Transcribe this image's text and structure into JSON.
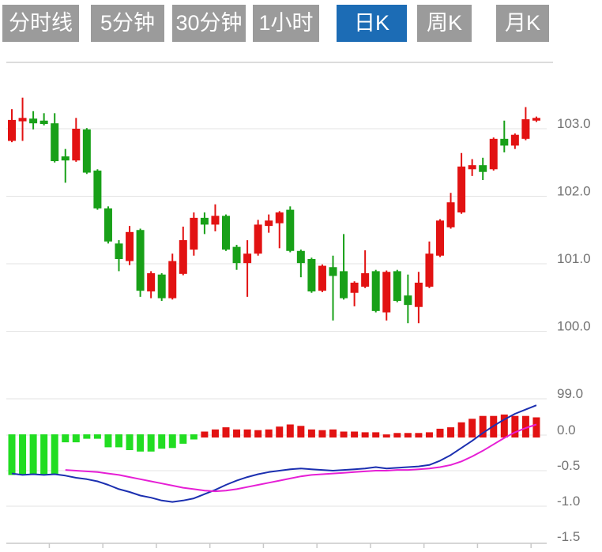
{
  "tabbar": {
    "active_index": 4,
    "active_color": "#1c6cb5",
    "inactive_color": "#9b9b9b",
    "tab_text_color": "#ffffff",
    "tabs": [
      {
        "label": "分时线"
      },
      {
        "label": "5分钟"
      },
      {
        "label": "30分钟"
      },
      {
        "label": "1小时"
      },
      {
        "label": "日K"
      },
      {
        "label": "周K"
      },
      {
        "label": "月K"
      }
    ]
  },
  "colors": {
    "candle_up": "#e21212",
    "candle_down": "#18a018",
    "macd_bar_up": "#e21212",
    "macd_bar_down": "#22dd22",
    "dif_line": "#1b2fb0",
    "dea_line": "#e61fd5",
    "gridline": "#e3e3e3",
    "axis_line": "#c9c9c9",
    "tick_label": "#737373"
  },
  "chart_data": {
    "type": "candlestick+macd",
    "grid": true,
    "legend": "none",
    "panels": [
      {
        "name": "price",
        "kind": "candlestick",
        "y_axis_side": "right",
        "y_ticks": [
          103.0,
          102.0,
          101.0,
          100.0,
          99.0
        ],
        "y_tick_labels": [
          "103.0",
          "102.0",
          "101.0",
          "100.0",
          "99.0"
        ],
        "ylim": [
          98.9,
          103.55
        ],
        "up_color_convention": "red-up / green-down (CN)",
        "ohlc": [
          [
            102.82,
            103.29,
            102.8,
            103.13
          ],
          [
            103.11,
            103.46,
            102.82,
            103.16
          ],
          [
            103.15,
            103.26,
            102.99,
            103.08
          ],
          [
            103.12,
            103.23,
            103.05,
            103.07
          ],
          [
            103.08,
            103.23,
            102.5,
            102.52
          ],
          [
            102.59,
            102.7,
            102.2,
            102.53
          ],
          [
            102.53,
            103.16,
            102.51,
            103.0
          ],
          [
            102.99,
            103.01,
            102.33,
            102.35
          ],
          [
            102.38,
            102.4,
            101.8,
            101.82
          ],
          [
            101.82,
            101.85,
            101.3,
            101.33
          ],
          [
            101.3,
            101.35,
            100.89,
            101.07
          ],
          [
            101.04,
            101.56,
            100.98,
            101.47
          ],
          [
            101.5,
            101.52,
            100.51,
            100.6
          ],
          [
            100.59,
            100.89,
            100.49,
            100.86
          ],
          [
            100.84,
            100.86,
            100.45,
            100.49
          ],
          [
            100.49,
            101.15,
            100.47,
            101.04
          ],
          [
            100.85,
            101.55,
            100.83,
            101.35
          ],
          [
            101.21,
            101.76,
            101.12,
            101.68
          ],
          [
            101.68,
            101.76,
            101.44,
            101.58
          ],
          [
            101.58,
            101.88,
            101.48,
            101.71
          ],
          [
            101.71,
            101.73,
            101.19,
            101.21
          ],
          [
            101.25,
            101.28,
            100.91,
            101.01
          ],
          [
            101.01,
            101.35,
            100.51,
            101.15
          ],
          [
            101.15,
            101.65,
            101.12,
            101.58
          ],
          [
            101.56,
            101.73,
            101.46,
            101.64
          ],
          [
            101.6,
            101.78,
            101.23,
            101.76
          ],
          [
            101.8,
            101.85,
            101.17,
            101.19
          ],
          [
            101.19,
            101.21,
            100.8,
            101.01
          ],
          [
            101.07,
            101.09,
            100.57,
            100.59
          ],
          [
            100.6,
            100.99,
            100.58,
            100.97
          ],
          [
            100.95,
            101.12,
            100.16,
            100.82
          ],
          [
            100.89,
            101.44,
            100.47,
            100.49
          ],
          [
            100.57,
            100.74,
            100.37,
            100.72
          ],
          [
            100.66,
            101.2,
            100.64,
            100.86
          ],
          [
            100.89,
            100.91,
            100.28,
            100.3
          ],
          [
            100.28,
            100.9,
            100.16,
            100.88
          ],
          [
            100.89,
            100.91,
            100.43,
            100.45
          ],
          [
            100.53,
            100.84,
            100.12,
            100.39
          ],
          [
            100.36,
            100.88,
            100.12,
            100.72
          ],
          [
            100.66,
            101.33,
            100.64,
            101.15
          ],
          [
            101.12,
            101.66,
            101.1,
            101.64
          ],
          [
            101.54,
            102.05,
            101.52,
            101.91
          ],
          [
            101.76,
            102.64,
            101.74,
            102.44
          ],
          [
            102.4,
            102.55,
            102.3,
            102.46
          ],
          [
            102.46,
            102.57,
            102.24,
            102.36
          ],
          [
            102.4,
            102.87,
            102.38,
            102.85
          ],
          [
            102.85,
            103.12,
            102.65,
            102.75
          ],
          [
            102.75,
            102.93,
            102.7,
            102.91
          ],
          [
            102.85,
            103.32,
            102.83,
            103.14
          ],
          [
            103.12,
            103.18,
            103.1,
            103.16
          ]
        ]
      },
      {
        "name": "macd",
        "kind": "bar+line",
        "y_axis_side": "right",
        "y_ticks": [
          0.0,
          -0.5,
          -1.0,
          -1.5
        ],
        "y_tick_labels": [
          "0.0",
          "-0.5",
          "-1.0",
          "-1.5"
        ],
        "ylim": [
          -1.55,
          0.55
        ],
        "histogram": [
          -0.55,
          -0.55,
          -0.55,
          -0.55,
          -0.55,
          -0.09,
          -0.09,
          -0.04,
          -0.04,
          -0.16,
          -0.16,
          -0.2,
          -0.22,
          -0.22,
          -0.18,
          -0.17,
          -0.11,
          -0.05,
          0.05,
          0.08,
          0.11,
          0.08,
          0.08,
          0.07,
          0.08,
          0.12,
          0.15,
          0.13,
          0.08,
          0.07,
          0.08,
          0.05,
          0.05,
          0.04,
          0.04,
          0.01,
          0.03,
          0.03,
          0.03,
          0.04,
          0.09,
          0.11,
          0.18,
          0.23,
          0.27,
          0.27,
          0.29,
          0.27,
          0.27,
          0.25
        ],
        "series": [
          {
            "name": "DIF",
            "values": [
              -0.54,
              -0.56,
              -0.55,
              -0.56,
              -0.55,
              -0.57,
              -0.6,
              -0.62,
              -0.65,
              -0.7,
              -0.76,
              -0.8,
              -0.85,
              -0.88,
              -0.92,
              -0.94,
              -0.92,
              -0.89,
              -0.83,
              -0.77,
              -0.7,
              -0.64,
              -0.59,
              -0.55,
              -0.52,
              -0.5,
              -0.48,
              -0.47,
              -0.48,
              -0.49,
              -0.5,
              -0.49,
              -0.48,
              -0.47,
              -0.45,
              -0.47,
              -0.46,
              -0.45,
              -0.44,
              -0.42,
              -0.36,
              -0.28,
              -0.18,
              -0.08,
              0.03,
              0.13,
              0.22,
              0.3,
              0.36,
              0.42
            ]
          },
          {
            "name": "DEA",
            "values": [
              null,
              null,
              null,
              null,
              null,
              -0.49,
              -0.5,
              -0.51,
              -0.52,
              -0.54,
              -0.56,
              -0.59,
              -0.62,
              -0.65,
              -0.68,
              -0.71,
              -0.74,
              -0.76,
              -0.78,
              -0.79,
              -0.78,
              -0.76,
              -0.73,
              -0.7,
              -0.67,
              -0.64,
              -0.61,
              -0.58,
              -0.56,
              -0.55,
              -0.54,
              -0.53,
              -0.52,
              -0.51,
              -0.5,
              -0.5,
              -0.49,
              -0.49,
              -0.48,
              -0.47,
              -0.45,
              -0.42,
              -0.37,
              -0.3,
              -0.22,
              -0.13,
              -0.04,
              0.04,
              0.1,
              0.15
            ]
          }
        ]
      }
    ],
    "x_axis": {
      "labels_visible": false,
      "tick_every_n_candles": 5,
      "num_candles": 50
    }
  }
}
